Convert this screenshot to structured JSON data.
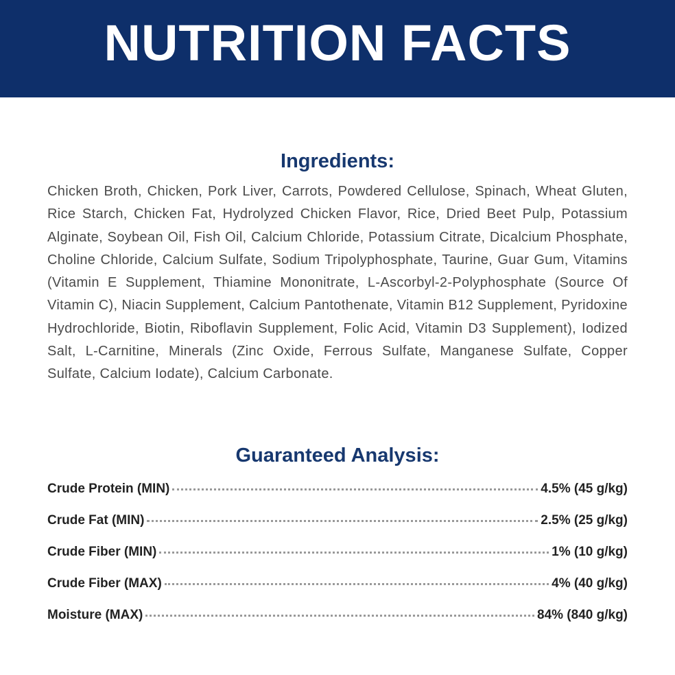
{
  "header": {
    "title": "NUTRITION FACTS"
  },
  "ingredients": {
    "heading": "Ingredients:",
    "text": "Chicken Broth, Chicken, Pork Liver, Carrots, Powdered Cellulose, Spinach, Wheat Gluten, Rice Starch, Chicken Fat, Hydrolyzed Chicken Flavor, Rice, Dried Beet Pulp, Potassium Alginate, Soybean Oil, Fish Oil, Calcium Chloride, Potassium Citrate, Dicalcium Phosphate, Choline Chloride, Calcium Sulfate, Sodium Tripolyphosphate, Taurine, Guar Gum, Vitamins (Vitamin E Supplement, Thiamine Mononitrate, L-Ascorbyl-2-Polyphosphate (Source Of Vitamin C), Niacin Supplement, Calcium Pantothenate, Vitamin B12 Supplement, Pyridoxine Hydrochloride, Biotin, Riboflavin Supplement, Folic Acid, Vitamin D3 Supplement), Iodized Salt, L-Carnitine, Minerals (Zinc Oxide, Ferrous Sulfate, Manganese Sulfate, Copper Sulfate, Calcium Iodate), Calcium Carbonate."
  },
  "analysis": {
    "heading": "Guaranteed Analysis:",
    "rows": [
      {
        "label": "Crude Protein (MIN)",
        "value": "4.5% (45 g/kg)"
      },
      {
        "label": "Crude Fat (MIN)",
        "value": "2.5% (25 g/kg)"
      },
      {
        "label": "Crude Fiber (MIN)",
        "value": "1% (10 g/kg)"
      },
      {
        "label": "Crude Fiber (MAX)",
        "value": "4% (40 g/kg)"
      },
      {
        "label": "Moisture (MAX)",
        "value": "84% (840 g/kg)"
      }
    ]
  }
}
